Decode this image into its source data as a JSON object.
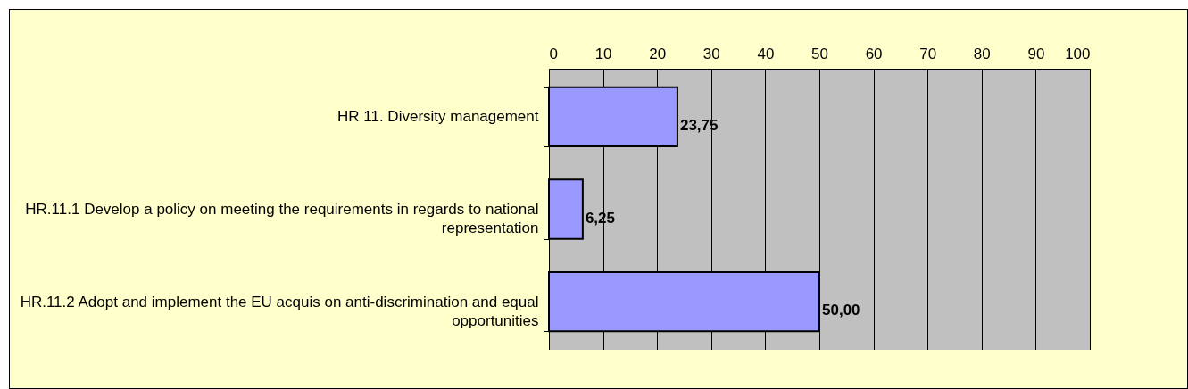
{
  "chart_data": {
    "type": "bar",
    "orientation": "horizontal",
    "categories": [
      "HR 11. Diversity management",
      "HR.11.1 Develop a policy on meeting the requirements in regards to national representation",
      "HR.11.2 Adopt and implement the EU acquis on anti-discrimination and equal opportunities"
    ],
    "values": [
      23.75,
      6.25,
      50.0
    ],
    "value_labels": [
      "23,75",
      "6,25",
      "50,00"
    ],
    "color": "#9999ff",
    "xlim": [
      0,
      100
    ],
    "xticks": [
      0,
      10,
      20,
      30,
      40,
      50,
      60,
      70,
      80,
      90,
      100
    ],
    "grid": "x"
  }
}
